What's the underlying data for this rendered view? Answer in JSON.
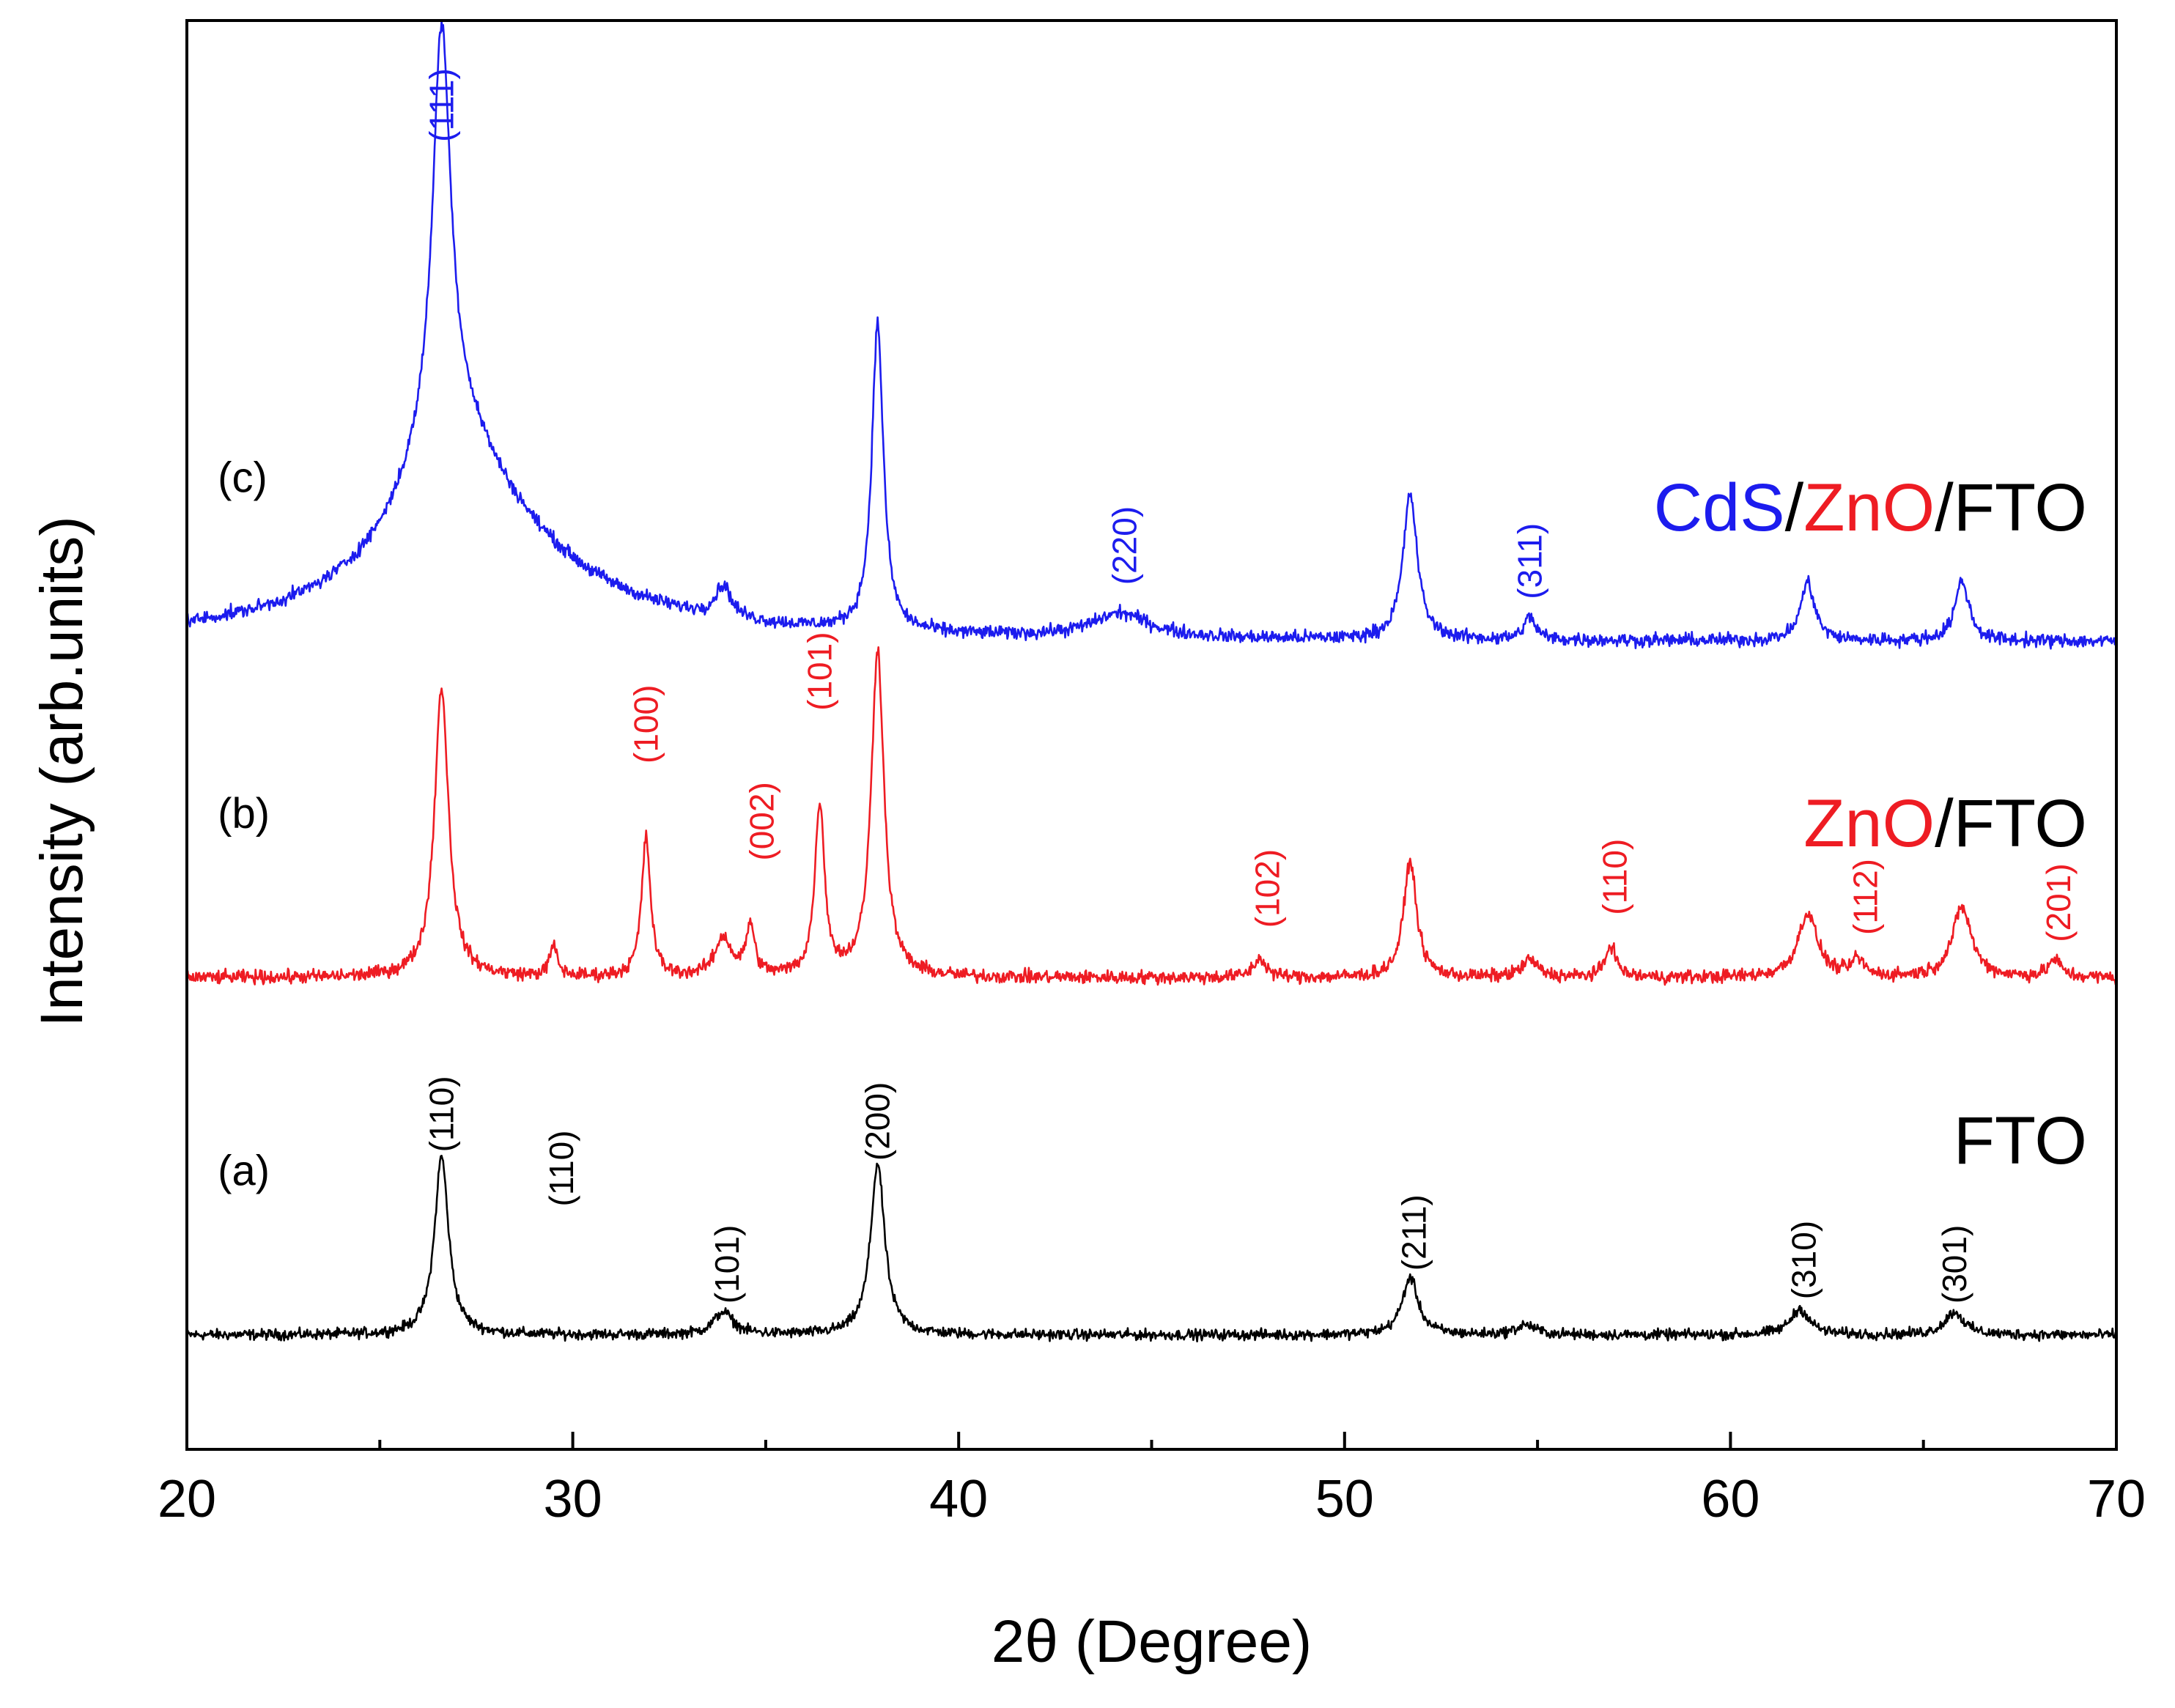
{
  "chart_data": {
    "type": "line",
    "title": "",
    "xlabel": "2θ (Degree)",
    "ylabel": "Intensity (arb.units)",
    "xlim": [
      20,
      70
    ],
    "xticks": [
      "20",
      "30",
      "40",
      "50",
      "60",
      "70"
    ],
    "ylim": [
      0,
      100
    ],
    "grid": false,
    "series": [
      {
        "id": "a",
        "curve_label": "(a)",
        "name_parts": [
          {
            "text": "FTO",
            "color": "#000000"
          }
        ],
        "color": "#000000",
        "baseline": 8,
        "noise": 0.55,
        "peaks": [
          {
            "x": 26.6,
            "h": 12.5,
            "w": 0.22
          },
          {
            "x": 33.9,
            "h": 1.6,
            "w": 0.3
          },
          {
            "x": 37.9,
            "h": 12.0,
            "w": 0.22
          },
          {
            "x": 51.7,
            "h": 4.0,
            "w": 0.25
          },
          {
            "x": 54.7,
            "h": 0.7,
            "w": 0.3
          },
          {
            "x": 61.8,
            "h": 1.8,
            "w": 0.3
          },
          {
            "x": 65.8,
            "h": 1.6,
            "w": 0.3
          }
        ],
        "peak_labels": [
          {
            "x": 26.6,
            "y": 20.8,
            "text": "(110)"
          },
          {
            "x": 29.7,
            "y": 17.0,
            "text": "(110)"
          },
          {
            "x": 34.0,
            "y": 10.2,
            "text": "(101)"
          },
          {
            "x": 37.9,
            "y": 20.2,
            "text": "(200)"
          },
          {
            "x": 51.8,
            "y": 12.5,
            "text": "(211)"
          },
          {
            "x": 61.9,
            "y": 10.5,
            "text": "(310)"
          },
          {
            "x": 65.8,
            "y": 10.2,
            "text": "(301)"
          }
        ]
      },
      {
        "id": "b",
        "curve_label": "(b)",
        "name_parts": [
          {
            "text": "ZnO",
            "color": "#ee1c23"
          },
          {
            "text": "/FTO",
            "color": "#000000"
          }
        ],
        "color": "#ee1c23",
        "baseline": 33,
        "noise": 0.7,
        "peaks": [
          {
            "x": 26.6,
            "h": 20.3,
            "w": 0.22
          },
          {
            "x": 29.5,
            "h": 2.1,
            "w": 0.12
          },
          {
            "x": 31.9,
            "h": 9.7,
            "w": 0.14
          },
          {
            "x": 33.9,
            "h": 2.7,
            "w": 0.25
          },
          {
            "x": 34.6,
            "h": 3.5,
            "w": 0.13
          },
          {
            "x": 36.4,
            "h": 12.0,
            "w": 0.15
          },
          {
            "x": 37.9,
            "h": 22.9,
            "w": 0.2
          },
          {
            "x": 47.8,
            "h": 1.3,
            "w": 0.2
          },
          {
            "x": 51.7,
            "h": 8.2,
            "w": 0.2
          },
          {
            "x": 54.8,
            "h": 1.2,
            "w": 0.25
          },
          {
            "x": 56.9,
            "h": 2.3,
            "w": 0.16
          },
          {
            "x": 62.0,
            "h": 4.5,
            "w": 0.3
          },
          {
            "x": 63.3,
            "h": 1.2,
            "w": 0.18
          },
          {
            "x": 66.0,
            "h": 4.9,
            "w": 0.3
          },
          {
            "x": 68.4,
            "h": 1.2,
            "w": 0.2
          }
        ],
        "peak_labels": [
          {
            "x": 31.9,
            "y": 48.0,
            "text": "(100)"
          },
          {
            "x": 34.9,
            "y": 41.2,
            "text": "(002)"
          },
          {
            "x": 36.4,
            "y": 51.7,
            "text": "(101)"
          },
          {
            "x": 48.0,
            "y": 36.5,
            "text": "(102)"
          },
          {
            "x": 57.0,
            "y": 37.4,
            "text": "(110)"
          },
          {
            "x": 63.5,
            "y": 36.0,
            "text": "(112)"
          },
          {
            "x": 68.5,
            "y": 35.5,
            "text": "(201)"
          }
        ]
      },
      {
        "id": "c",
        "curve_label": "(c)",
        "name_parts": [
          {
            "text": "CdS",
            "color": "#1c1cee"
          },
          {
            "text": "/",
            "color": "#000000"
          },
          {
            "text": "ZnO",
            "color": "#ee1c23"
          },
          {
            "text": "/FTO",
            "color": "#000000"
          }
        ],
        "color": "#1c1cee",
        "baseline": 56.5,
        "noise": 0.7,
        "peaks": [
          {
            "x": 26.6,
            "h": 28.0,
            "w": 0.28
          },
          {
            "x": 26.8,
            "h": 9.0,
            "w": 1.4
          },
          {
            "x": 27.5,
            "h": 7.0,
            "w": 3.2
          },
          {
            "x": 33.9,
            "h": 2.2,
            "w": 0.25
          },
          {
            "x": 37.9,
            "h": 21.5,
            "w": 0.18
          },
          {
            "x": 44.2,
            "h": 1.7,
            "w": 0.9
          },
          {
            "x": 51.7,
            "h": 10.2,
            "w": 0.22
          },
          {
            "x": 54.8,
            "h": 1.6,
            "w": 0.18
          },
          {
            "x": 62.0,
            "h": 4.1,
            "w": 0.22
          },
          {
            "x": 66.0,
            "h": 4.2,
            "w": 0.22
          }
        ],
        "peak_labels": [
          {
            "x": 26.6,
            "y": 91.5,
            "text": "(111)"
          },
          {
            "x": 44.3,
            "y": 60.5,
            "text": "(220)"
          },
          {
            "x": 54.8,
            "y": 59.5,
            "text": "(311)"
          }
        ]
      }
    ]
  }
}
